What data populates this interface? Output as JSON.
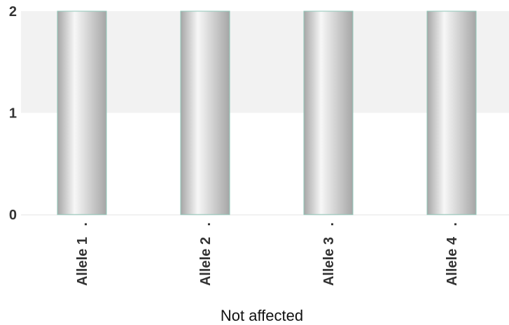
{
  "chart_data": {
    "type": "bar",
    "categories": [
      "Allele 1",
      "Allele 2",
      "Allele 3",
      "Allele 4"
    ],
    "category_suffix": ".",
    "values": [
      2,
      2,
      2,
      2
    ],
    "xlabel": "Not affected",
    "ylabel": "",
    "ylim": [
      0,
      2
    ],
    "yticks": [
      "0",
      "1",
      "2"
    ],
    "grid": "alternating horizontal bands",
    "legend": "none",
    "colors": {
      "band": "#f2f2f2",
      "bar_dark": "#a6a6a6",
      "bar_light": "#f7f7f7",
      "bar_edge": "#8fc7b8",
      "axis_text": "#333333"
    }
  }
}
